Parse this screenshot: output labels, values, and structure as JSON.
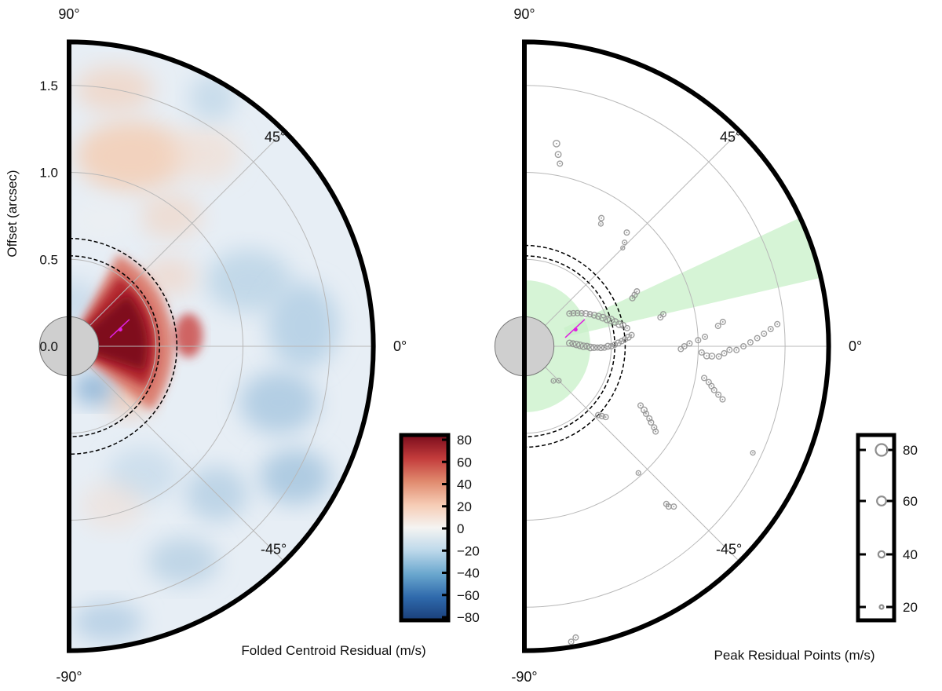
{
  "chart_data": [
    {
      "type": "heatmap",
      "projection": "polar-half",
      "colorbar_title": "Folded Centroid Residual (m/s)",
      "ylabel": "Offset (arcsec)",
      "radial_ticks": [
        0.0,
        0.5,
        1.0,
        1.5
      ],
      "radial_tick_labels": [
        "0.0",
        "0.5",
        "1.0",
        "1.5"
      ],
      "rlim": [
        0,
        1.75
      ],
      "angle_ticks": [
        90,
        45,
        0,
        -45,
        -90
      ],
      "angle_tick_labels": [
        "90°",
        "45°",
        "0°",
        "-45°",
        "-90°"
      ],
      "gridlines": true,
      "colormap": "RdBu_r",
      "clim": [
        -80,
        80
      ],
      "colorbar_ticks": [
        80,
        60,
        40,
        20,
        0,
        -20,
        -40,
        -60,
        -80
      ],
      "colorbar_tick_labels": [
        "80",
        "60",
        "40",
        "20",
        "0",
        "−20",
        "−40",
        "−60",
        "−80"
      ],
      "masked_center_radius": 0.17,
      "dashed_circle_radii": [
        0.52,
        0.62
      ],
      "marker": {
        "r": 0.31,
        "theta_deg": 18,
        "color": "#e020e0"
      },
      "features": [
        {
          "label": "strong positive lobe",
          "r_range": [
            0.05,
            0.52
          ],
          "theta_range": [
            -35,
            60
          ],
          "value": 80
        },
        {
          "label": "weak positive region",
          "r": 1.15,
          "theta_deg": 75,
          "value": 15
        },
        {
          "label": "weak negative region",
          "r": 1.2,
          "theta_deg": -10,
          "value": -25
        }
      ]
    },
    {
      "type": "scatter",
      "projection": "polar-half",
      "legend_title": "Peak Residual Points (m/s)",
      "legend_sizes": [
        80,
        60,
        40,
        20
      ],
      "legend_labels": [
        "80",
        "60",
        "40",
        "20"
      ],
      "angle_ticks": [
        90,
        45,
        0,
        -45,
        -90
      ],
      "angle_tick_labels": [
        "90°",
        "45°",
        "0°",
        "-45°",
        "-90°"
      ],
      "rlim": [
        0,
        1.75
      ],
      "shaded_regions": [
        {
          "label": "inner region",
          "r_range": [
            0,
            0.38
          ],
          "theta_range": [
            -90,
            90
          ],
          "color": "#c8f0c8"
        },
        {
          "label": "wedge",
          "r_range": [
            0.25,
            1.75
          ],
          "theta_range": [
            13,
            25
          ],
          "color": "#c8f0c8"
        }
      ],
      "masked_center_radius": 0.17,
      "dashed_circle_radii": [
        0.52,
        0.58
      ],
      "marker": {
        "r": 0.31,
        "theta_deg": 18,
        "color": "#e020e0"
      },
      "points": [
        [
          1.18,
          81,
          40
        ],
        [
          1.12,
          80,
          35
        ],
        [
          1.07,
          79,
          30
        ],
        [
          0.86,
          59,
          30
        ],
        [
          0.83,
          58,
          25
        ],
        [
          0.88,
          48,
          30
        ],
        [
          0.83,
          46,
          25
        ],
        [
          0.8,
          45,
          20
        ],
        [
          0.62,
          6,
          30
        ],
        [
          0.6,
          5,
          35
        ],
        [
          0.58,
          4,
          30
        ],
        [
          0.56,
          3,
          30
        ],
        [
          0.54,
          2,
          35
        ],
        [
          0.52,
          1,
          30
        ],
        [
          0.5,
          0,
          30
        ],
        [
          0.48,
          0,
          35
        ],
        [
          0.46,
          -1,
          30
        ],
        [
          0.44,
          -1,
          35
        ],
        [
          0.42,
          -1,
          30
        ],
        [
          0.4,
          -1,
          35
        ],
        [
          0.38,
          -1,
          40
        ],
        [
          0.36,
          0,
          35
        ],
        [
          0.34,
          0,
          40
        ],
        [
          0.32,
          1,
          40
        ],
        [
          0.3,
          2,
          40
        ],
        [
          0.28,
          3,
          35
        ],
        [
          0.26,
          4,
          35
        ],
        [
          0.6,
          10,
          30
        ],
        [
          0.58,
          12,
          35
        ],
        [
          0.56,
          13,
          40
        ],
        [
          0.54,
          15,
          40
        ],
        [
          0.52,
          17,
          45
        ],
        [
          0.5,
          18,
          40
        ],
        [
          0.48,
          20,
          40
        ],
        [
          0.46,
          22,
          35
        ],
        [
          0.44,
          24,
          35
        ],
        [
          0.42,
          26,
          30
        ],
        [
          0.4,
          28,
          35
        ],
        [
          0.38,
          30,
          30
        ],
        [
          0.36,
          32,
          30
        ],
        [
          0.34,
          34,
          30
        ],
        [
          0.32,
          36,
          30
        ],
        [
          0.7,
          25,
          30
        ],
        [
          0.72,
          26,
          30
        ],
        [
          0.68,
          24,
          30
        ],
        [
          0.8,
          12,
          30
        ],
        [
          0.82,
          13,
          30
        ],
        [
          1.02,
          -2,
          30
        ],
        [
          1.05,
          -3,
          35
        ],
        [
          1.08,
          -3,
          35
        ],
        [
          1.12,
          -3,
          30
        ],
        [
          1.15,
          -2,
          30
        ],
        [
          1.18,
          -1,
          30
        ],
        [
          1.22,
          -1,
          30
        ],
        [
          1.26,
          0,
          30
        ],
        [
          1.3,
          1,
          30
        ],
        [
          1.34,
          2,
          30
        ],
        [
          1.38,
          3,
          30
        ],
        [
          1.42,
          4,
          30
        ],
        [
          1.46,
          5,
          30
        ],
        [
          1.0,
          2,
          30
        ],
        [
          1.04,
          3,
          30
        ],
        [
          0.95,
          1,
          30
        ],
        [
          0.92,
          0,
          30
        ],
        [
          0.9,
          -1,
          30
        ],
        [
          1.15,
          7,
          30
        ],
        [
          1.12,
          6,
          30
        ],
        [
          1.05,
          -10,
          30
        ],
        [
          1.08,
          -11,
          30
        ],
        [
          1.1,
          -12,
          30
        ],
        [
          1.12,
          -13,
          30
        ],
        [
          1.15,
          -14,
          30
        ],
        [
          1.18,
          -15,
          30
        ],
        [
          0.75,
          -27,
          30
        ],
        [
          0.78,
          -28,
          35
        ],
        [
          0.8,
          -29,
          30
        ],
        [
          0.83,
          -30,
          30
        ],
        [
          0.85,
          -31,
          30
        ],
        [
          0.88,
          -32,
          30
        ],
        [
          0.9,
          -33,
          30
        ],
        [
          0.62,
          -41,
          30
        ],
        [
          0.6,
          -42,
          30
        ],
        [
          0.58,
          -43,
          30
        ],
        [
          1.45,
          -25,
          25
        ],
        [
          0.98,
          -48,
          25
        ],
        [
          1.24,
          -48,
          30
        ],
        [
          1.26,
          -47,
          30
        ],
        [
          1.22,
          -48,
          30
        ],
        [
          1.72,
          -81,
          30
        ],
        [
          1.7,
          -80,
          30
        ],
        [
          0.28,
          -45,
          25
        ],
        [
          0.26,
          -50,
          25
        ]
      ]
    }
  ]
}
